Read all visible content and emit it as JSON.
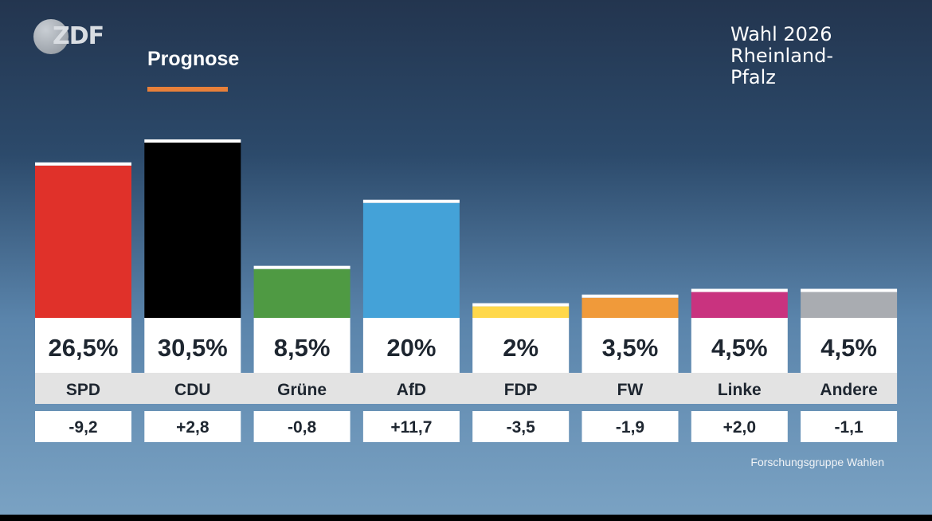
{
  "header": {
    "logo": "ZDF",
    "subtitle": "Prognose",
    "title_lines": [
      "Wahl 2026",
      "Rheinland-",
      "Pfalz"
    ]
  },
  "source": "Forschungsgruppe Wahlen",
  "colors": {
    "accent": "#e8803a",
    "label_band": "#e3e3e3",
    "value_box": "#ffffff"
  },
  "chart_data": {
    "type": "bar",
    "categories": [
      "SPD",
      "CDU",
      "Grüne",
      "AfD",
      "FDP",
      "FW",
      "Linke",
      "Andere"
    ],
    "values": [
      26.5,
      30.5,
      8.5,
      20,
      2,
      3.5,
      4.5,
      4.5
    ],
    "value_labels": [
      "26,5%",
      "30,5%",
      "8,5%",
      "20%",
      "2%",
      "3,5%",
      "4,5%",
      "4,5%"
    ],
    "changes": [
      "-9,2",
      "+2,8",
      "-0,8",
      "+11,7",
      "-3,5",
      "-1,9",
      "+2,0",
      "-1,1"
    ],
    "bar_colors": [
      "#e0312a",
      "#000000",
      "#4f9a43",
      "#44a2d8",
      "#ffd84a",
      "#f09a3a",
      "#c9337f",
      "#a9acb1"
    ],
    "title": "",
    "xlabel": "",
    "ylabel": "",
    "ylim": [
      0,
      30.5
    ],
    "grid": false,
    "legend": "none"
  }
}
